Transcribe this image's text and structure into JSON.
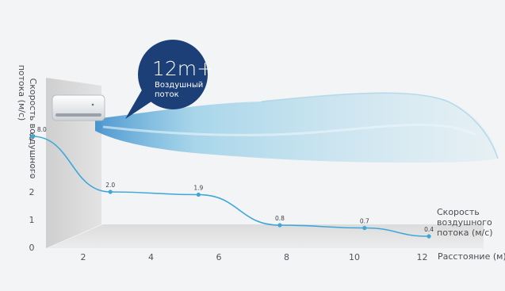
{
  "colors": {
    "background": "#f3f4f6",
    "wall": "#d6d6d6",
    "curve": "#3fa7d8",
    "bubble": "#1c3f78",
    "airflow": "#7fc4e0"
  },
  "bubble": {
    "headline": "12m+",
    "line1": "Воздушный",
    "line2": "поток"
  },
  "icons": {
    "air_conditioner": "air-conditioner-unit",
    "airflow": "air-stream"
  },
  "chart_data": {
    "type": "line",
    "xlabel": "Расстояние (м)",
    "ylabel": "Скорость воздушного потока (м/с)",
    "ylabel_lines": [
      "Скорость воздушного",
      "потока (м/с)"
    ],
    "right_label_lines": [
      "Скорость",
      "воздушного",
      "потока (м/с)"
    ],
    "x_ticks": [
      "2",
      "4",
      "6",
      "8",
      "10",
      "12"
    ],
    "y_ticks": [
      "0",
      "1",
      "2",
      "8"
    ],
    "y_break": true,
    "series": [
      {
        "x": [
          0.5,
          2.8,
          5.4,
          7.8,
          10.3,
          12.2
        ],
        "values": [
          8.0,
          2.0,
          1.9,
          0.8,
          0.7,
          0.4
        ],
        "labels": [
          "8.0",
          "2.0",
          "1.9",
          "0.8",
          "0.7",
          "0.4"
        ]
      }
    ],
    "grid": false
  }
}
